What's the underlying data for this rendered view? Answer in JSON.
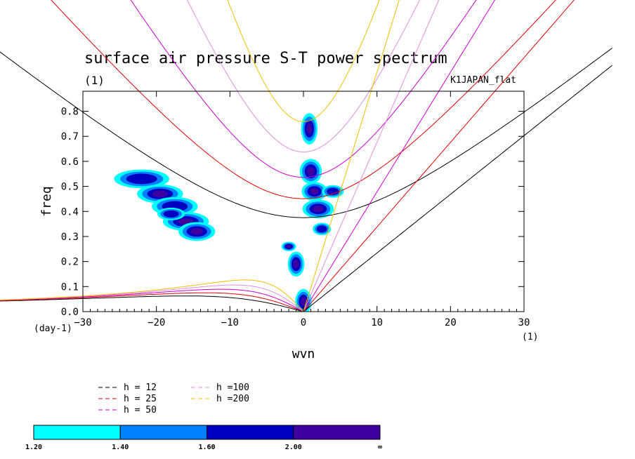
{
  "chart_data": {
    "type": "heatmap",
    "title": "surface air pressure S-T power spectrum",
    "subtitle_left": "(1)",
    "subtitle_right": "K1JAPAN_flat",
    "xlabel": "wvn",
    "ylabel": "freq",
    "x_unit": "(1)",
    "y_unit": "(day-1)",
    "xlim": [
      -30,
      30
    ],
    "ylim": [
      0,
      0.88
    ],
    "x_ticks": [
      "−30",
      "−20",
      "−10",
      "0",
      "10",
      "20",
      "30"
    ],
    "x_tick_values": [
      -30,
      -20,
      -10,
      0,
      10,
      20,
      30
    ],
    "y_ticks": [
      "0.0",
      "0.1",
      "0.2",
      "0.3",
      "0.4",
      "0.5",
      "0.6",
      "0.7",
      "0.8"
    ],
    "y_tick_values": [
      0,
      0.1,
      0.2,
      0.3,
      0.4,
      0.5,
      0.6,
      0.7,
      0.8
    ],
    "dispersion_curves": [
      {
        "label": "h = 12",
        "h": 12,
        "color": "#000000"
      },
      {
        "label": "h = 25",
        "h": 25,
        "color": "#dd0000"
      },
      {
        "label": "h = 50",
        "h": 50,
        "color": "#cc00cc"
      },
      {
        "label": "h =100",
        "h": 100,
        "color": "#e090e0"
      },
      {
        "label": "h =200",
        "h": 200,
        "color": "#f0c000"
      }
    ],
    "colorbar": {
      "levels": [
        "1.20",
        "1.40",
        "1.60",
        "2.00",
        "∞"
      ],
      "colors": [
        "#00ffff",
        "#0080ff",
        "#0000c0",
        "#4000a0"
      ]
    },
    "power_blobs": [
      {
        "x": -22.0,
        "y": 0.53,
        "rx": 3.0,
        "ry": 0.03,
        "level": 2
      },
      {
        "x": -19.5,
        "y": 0.47,
        "rx": 2.5,
        "ry": 0.03,
        "level": 3
      },
      {
        "x": -17.5,
        "y": 0.42,
        "rx": 2.5,
        "ry": 0.03,
        "level": 2
      },
      {
        "x": -16.0,
        "y": 0.36,
        "rx": 2.5,
        "ry": 0.03,
        "level": 3
      },
      {
        "x": -14.5,
        "y": 0.32,
        "rx": 2.0,
        "ry": 0.03,
        "level": 3
      },
      {
        "x": -18.0,
        "y": 0.39,
        "rx": 1.5,
        "ry": 0.02,
        "level": 2
      },
      {
        "x": -2.0,
        "y": 0.26,
        "rx": 0.8,
        "ry": 0.015,
        "level": 3
      },
      {
        "x": -1.0,
        "y": 0.19,
        "rx": 0.9,
        "ry": 0.04,
        "level": 3
      },
      {
        "x": 0.0,
        "y": 0.04,
        "rx": 0.9,
        "ry": 0.04,
        "level": 3
      },
      {
        "x": 0.8,
        "y": 0.73,
        "rx": 0.9,
        "ry": 0.05,
        "level": 3
      },
      {
        "x": 1.0,
        "y": 0.56,
        "rx": 1.2,
        "ry": 0.04,
        "level": 3
      },
      {
        "x": 1.5,
        "y": 0.48,
        "rx": 1.4,
        "ry": 0.03,
        "level": 3
      },
      {
        "x": 2.0,
        "y": 0.41,
        "rx": 1.7,
        "ry": 0.03,
        "level": 3
      },
      {
        "x": 4.0,
        "y": 0.48,
        "rx": 1.2,
        "ry": 0.02,
        "level": 2
      },
      {
        "x": 2.5,
        "y": 0.33,
        "rx": 1.0,
        "ry": 0.02,
        "level": 2
      }
    ]
  },
  "legend": {
    "items": [
      {
        "label": "h = 12",
        "color": "#000000"
      },
      {
        "label": "h = 25",
        "color": "#dd0000"
      },
      {
        "label": "h = 50",
        "color": "#cc00cc"
      },
      {
        "label": "h =100",
        "color": "#e090e0"
      },
      {
        "label": "h =200",
        "color": "#f0c000"
      }
    ]
  }
}
